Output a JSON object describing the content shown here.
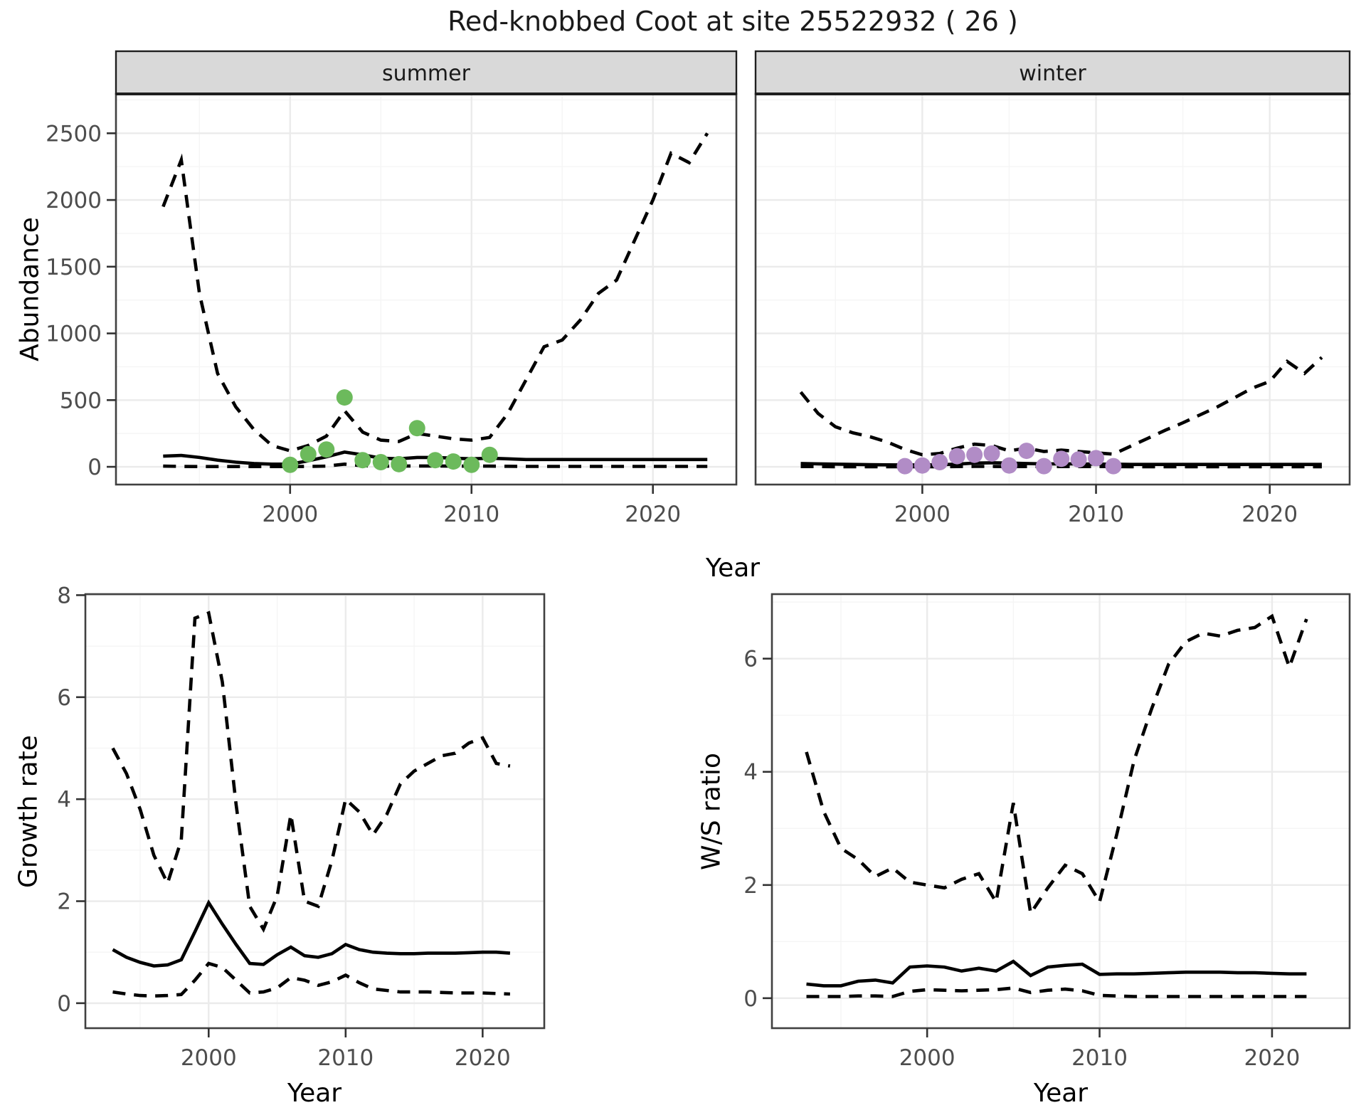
{
  "title": "Red-knobbed Coot at site 25522932 ( 26 )",
  "axis_labels": {
    "abundance": "Abundance",
    "year_top": "Year",
    "growth_rate": "Growth rate",
    "year_bottom_left": "Year",
    "ws_ratio": "W/S ratio",
    "year_bottom_right": "Year"
  },
  "facet_labels": {
    "summer": "summer",
    "winter": "winter"
  },
  "colors": {
    "summer_point": "#6CBA5C",
    "winter_point": "#B18CC6",
    "line": "#000000",
    "grid_major": "#EBEBEB",
    "grid_minor": "#F5F5F5",
    "strip_bg": "#D9D9D9",
    "strip_border": "#1F1F1F",
    "panel_border": "#404040",
    "axis_text": "#4D4D4D",
    "tick_mark": "#333333",
    "panel_bg": "#FFFFFF"
  },
  "chart_data": [
    {
      "type": "line",
      "name": "abundance-summer",
      "title": "summer",
      "xlabel": "Year",
      "ylabel": "Abundance",
      "xlim": [
        1990.4,
        2024.6
      ],
      "ylim": [
        -133,
        2795
      ],
      "x_ticks": [
        2000,
        2010,
        2020
      ],
      "x_minor": [
        1995,
        2005,
        2015
      ],
      "y_ticks": [
        0,
        500,
        1000,
        1500,
        2000,
        2500
      ],
      "y_minor": [
        250,
        750,
        1250,
        1750,
        2250,
        2750
      ],
      "x": [
        1993,
        1994,
        1995,
        1996,
        1997,
        1998,
        1999,
        2000,
        2001,
        2002,
        2003,
        2004,
        2005,
        2006,
        2007,
        2008,
        2009,
        2010,
        2011,
        2012,
        2013,
        2014,
        2015,
        2016,
        2017,
        2018,
        2019,
        2020,
        2021,
        2022,
        2023
      ],
      "series": [
        {
          "name": "upper-95ci",
          "style": "dashed",
          "values": [
            1950,
            2300,
            1300,
            700,
            450,
            280,
            160,
            120,
            160,
            230,
            420,
            260,
            200,
            190,
            250,
            230,
            210,
            200,
            220,
            400,
            650,
            900,
            950,
            1100,
            1300,
            1400,
            1700,
            2000,
            2350,
            2280,
            2500
          ]
        },
        {
          "name": "median",
          "style": "solid",
          "values": [
            80,
            85,
            70,
            50,
            35,
            25,
            20,
            20,
            45,
            75,
            110,
            90,
            65,
            60,
            70,
            70,
            65,
            60,
            65,
            60,
            55,
            55,
            55,
            55,
            55,
            55,
            55,
            55,
            55,
            55,
            55
          ]
        },
        {
          "name": "lower-95ci",
          "style": "dashed",
          "values": [
            5,
            3,
            2,
            2,
            2,
            2,
            2,
            2,
            3,
            5,
            20,
            8,
            5,
            5,
            6,
            6,
            5,
            5,
            5,
            4,
            3,
            3,
            3,
            3,
            3,
            3,
            3,
            3,
            3,
            3,
            3
          ]
        }
      ],
      "points": {
        "name": "summer-observations",
        "color_key": "summer_point",
        "x": [
          2000,
          2001,
          2002,
          2003,
          2004,
          2005,
          2006,
          2007,
          2008,
          2009,
          2010,
          2011
        ],
        "y": [
          15,
          95,
          130,
          520,
          50,
          35,
          20,
          290,
          50,
          40,
          15,
          90
        ]
      }
    },
    {
      "type": "line",
      "name": "abundance-winter",
      "title": "winter",
      "xlabel": "Year",
      "ylabel": "Abundance",
      "xlim": [
        1990.4,
        2024.6
      ],
      "ylim": [
        -133,
        2795
      ],
      "x_ticks": [
        2000,
        2010,
        2020
      ],
      "x_minor": [
        1995,
        2005,
        2015
      ],
      "y_ticks": [
        0,
        500,
        1000,
        1500,
        2000,
        2500
      ],
      "y_minor": [
        250,
        750,
        1250,
        1750,
        2250,
        2750
      ],
      "x": [
        1993,
        1994,
        1995,
        1996,
        1997,
        1998,
        1999,
        2000,
        2001,
        2002,
        2003,
        2004,
        2005,
        2006,
        2007,
        2008,
        2009,
        2010,
        2011,
        2012,
        2013,
        2014,
        2015,
        2016,
        2017,
        2018,
        2019,
        2020,
        2021,
        2022,
        2023
      ],
      "series": [
        {
          "name": "upper-95ci",
          "style": "dashed",
          "values": [
            560,
            400,
            300,
            255,
            225,
            185,
            130,
            90,
            100,
            140,
            170,
            160,
            120,
            140,
            115,
            125,
            115,
            105,
            95,
            155,
            215,
            275,
            330,
            390,
            450,
            520,
            590,
            640,
            790,
            700,
            820
          ]
        },
        {
          "name": "median",
          "style": "solid",
          "values": [
            25,
            22,
            20,
            18,
            16,
            15,
            14,
            14,
            16,
            20,
            28,
            30,
            28,
            25,
            22,
            22,
            22,
            20,
            20,
            18,
            18,
            18,
            18,
            18,
            18,
            18,
            18,
            18,
            18,
            18,
            18
          ]
        },
        {
          "name": "lower-95ci",
          "style": "dashed",
          "values": [
            2,
            2,
            1,
            1,
            1,
            1,
            1,
            1,
            1,
            2,
            3,
            3,
            2,
            2,
            2,
            2,
            2,
            2,
            2,
            1,
            1,
            1,
            1,
            1,
            1,
            1,
            1,
            1,
            1,
            1,
            1
          ]
        }
      ],
      "points": {
        "name": "winter-observations",
        "color_key": "winter_point",
        "x": [
          1999,
          2000,
          2001,
          2002,
          2003,
          2004,
          2005,
          2006,
          2007,
          2008,
          2009,
          2010,
          2011
        ],
        "y": [
          5,
          10,
          35,
          80,
          90,
          100,
          10,
          120,
          5,
          60,
          55,
          65,
          5
        ]
      }
    },
    {
      "type": "line",
      "name": "growth-rate",
      "title": "",
      "xlabel": "Year",
      "ylabel": "Growth rate",
      "xlim": [
        1991.0,
        2024.5
      ],
      "ylim": [
        -0.49,
        8.02
      ],
      "x_ticks": [
        2000,
        2010,
        2020
      ],
      "x_minor": [
        1995,
        2005,
        2015
      ],
      "y_ticks": [
        0,
        2,
        4,
        6,
        8
      ],
      "y_minor": [
        1,
        3,
        5,
        7
      ],
      "x": [
        1993,
        1994,
        1995,
        1996,
        1997,
        1998,
        1999,
        2000,
        2001,
        2002,
        2003,
        2004,
        2005,
        2006,
        2007,
        2008,
        2009,
        2010,
        2011,
        2012,
        2013,
        2014,
        2015,
        2016,
        2017,
        2018,
        2019,
        2020,
        2021,
        2022
      ],
      "series": [
        {
          "name": "upper-95ci",
          "style": "dashed",
          "values": [
            5.0,
            4.5,
            3.8,
            2.9,
            2.35,
            3.2,
            7.55,
            7.65,
            6.3,
            3.9,
            1.9,
            1.45,
            2.1,
            3.7,
            2.0,
            1.9,
            2.8,
            4.0,
            3.75,
            3.3,
            3.7,
            4.3,
            4.55,
            4.7,
            4.85,
            4.9,
            5.1,
            5.2,
            4.7,
            4.65
          ]
        },
        {
          "name": "median",
          "style": "solid",
          "values": [
            1.05,
            0.9,
            0.8,
            0.73,
            0.75,
            0.85,
            1.4,
            1.97,
            1.55,
            1.15,
            0.78,
            0.76,
            0.95,
            1.1,
            0.93,
            0.9,
            0.97,
            1.15,
            1.05,
            1.0,
            0.98,
            0.97,
            0.97,
            0.98,
            0.98,
            0.98,
            0.99,
            1.0,
            1.0,
            0.98
          ]
        },
        {
          "name": "lower-95ci",
          "style": "dashed",
          "values": [
            0.22,
            0.18,
            0.15,
            0.14,
            0.15,
            0.17,
            0.45,
            0.78,
            0.7,
            0.45,
            0.2,
            0.22,
            0.3,
            0.5,
            0.45,
            0.35,
            0.42,
            0.55,
            0.4,
            0.28,
            0.25,
            0.22,
            0.22,
            0.22,
            0.21,
            0.2,
            0.2,
            0.2,
            0.19,
            0.18
          ]
        }
      ]
    },
    {
      "type": "line",
      "name": "ws-ratio",
      "title": "",
      "xlabel": "Year",
      "ylabel": "W/S ratio",
      "xlim": [
        1991.0,
        2024.5
      ],
      "ylim": [
        -0.53,
        7.14
      ],
      "x_ticks": [
        2000,
        2010,
        2020
      ],
      "x_minor": [
        1995,
        2005,
        2015
      ],
      "y_ticks": [
        0,
        2,
        4,
        6
      ],
      "y_minor": [
        1,
        3,
        5,
        7
      ],
      "x": [
        1993,
        1994,
        1995,
        1996,
        1997,
        1998,
        1999,
        2000,
        2001,
        2002,
        2003,
        2004,
        2005,
        2006,
        2007,
        2008,
        2009,
        2010,
        2011,
        2012,
        2013,
        2014,
        2015,
        2016,
        2017,
        2018,
        2019,
        2020,
        2021,
        2022
      ],
      "series": [
        {
          "name": "upper-95ci",
          "style": "dashed",
          "values": [
            4.35,
            3.3,
            2.65,
            2.45,
            2.15,
            2.3,
            2.05,
            2.0,
            1.95,
            2.1,
            2.2,
            1.7,
            3.45,
            1.5,
            1.95,
            2.35,
            2.2,
            1.7,
            2.9,
            4.2,
            5.1,
            5.9,
            6.3,
            6.45,
            6.4,
            6.5,
            6.55,
            6.75,
            5.85,
            6.7
          ]
        },
        {
          "name": "median",
          "style": "solid",
          "values": [
            0.25,
            0.22,
            0.22,
            0.3,
            0.32,
            0.27,
            0.55,
            0.57,
            0.55,
            0.48,
            0.53,
            0.48,
            0.65,
            0.4,
            0.55,
            0.58,
            0.6,
            0.42,
            0.43,
            0.43,
            0.44,
            0.45,
            0.46,
            0.46,
            0.46,
            0.45,
            0.45,
            0.44,
            0.43,
            0.43
          ]
        },
        {
          "name": "lower-95ci",
          "style": "dashed",
          "values": [
            0.03,
            0.03,
            0.03,
            0.04,
            0.04,
            0.03,
            0.12,
            0.15,
            0.14,
            0.13,
            0.14,
            0.15,
            0.18,
            0.1,
            0.14,
            0.16,
            0.13,
            0.05,
            0.04,
            0.03,
            0.03,
            0.03,
            0.03,
            0.03,
            0.03,
            0.03,
            0.03,
            0.03,
            0.03,
            0.03
          ]
        }
      ]
    }
  ]
}
